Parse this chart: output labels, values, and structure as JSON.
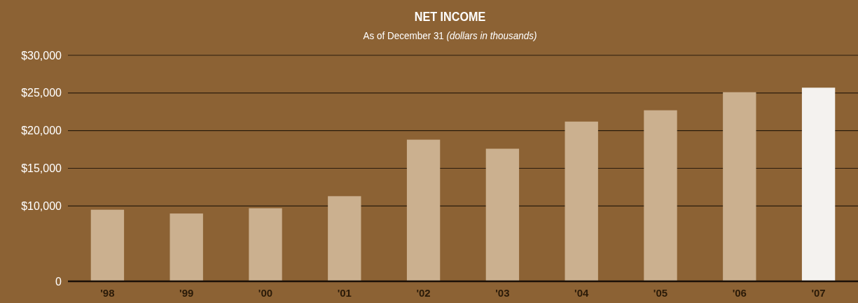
{
  "chart_data": {
    "type": "bar",
    "title": "NET INCOME",
    "subtitle": "As of December 31 (dollars in thousands)",
    "categories": [
      "'98",
      "'99",
      "'00",
      "'01",
      "'02",
      "'03",
      "'04",
      "'05",
      "'06",
      "'07"
    ],
    "values": [
      9500,
      9000,
      9700,
      11300,
      18800,
      17600,
      21200,
      22700,
      25100,
      25700
    ],
    "colors": [
      "#cbb08f",
      "#cbb08f",
      "#cbb08f",
      "#cbb08f",
      "#cbb08f",
      "#cbb08f",
      "#cbb08f",
      "#cbb08f",
      "#cbb08f",
      "#f4f2ef"
    ],
    "ylim": [
      0,
      30000
    ],
    "yticks": [
      {
        "value": 0,
        "label": "0"
      },
      {
        "value": 10000,
        "label": "$10,000"
      },
      {
        "value": 15000,
        "label": "$15,000"
      },
      {
        "value": 20000,
        "label": "$20,000"
      },
      {
        "value": 25000,
        "label": "$25,000"
      },
      {
        "value": 30000,
        "label": "$30,000"
      }
    ],
    "grid": "y"
  }
}
